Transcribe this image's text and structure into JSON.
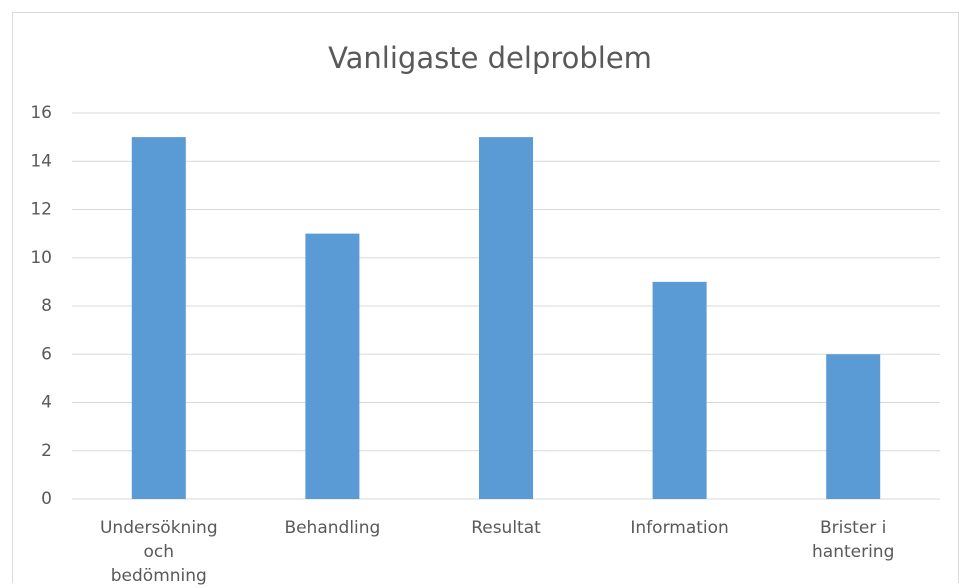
{
  "chart_data": {
    "type": "bar",
    "title": "Vanligaste delproblem",
    "categories": [
      "Undersökning och bedömning",
      "Behandling",
      "Resultat",
      "Information",
      "Brister i hantering"
    ],
    "values": [
      15,
      11,
      15,
      9,
      6
    ],
    "color": "#5b9bd5",
    "ylim": [
      0,
      16
    ],
    "yticks": [
      0,
      2,
      4,
      6,
      8,
      10,
      12,
      14,
      16
    ],
    "grid": true
  }
}
